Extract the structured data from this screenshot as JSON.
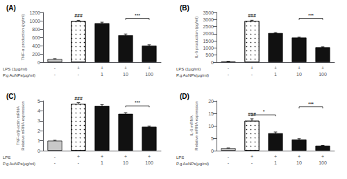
{
  "chart_data": [
    {
      "type": "bar",
      "title": "(A)",
      "ylabel": "TNF-α production (pg/ml)",
      "xlabel": "LPS (1μg/ml)\nP.g AuNPs(μg/ml)",
      "categories": [
        "-\n-",
        "+\n-",
        "+\n1",
        "+\n10",
        "+\n100"
      ],
      "values": [
        75,
        990,
        940,
        650,
        400
      ],
      "errors": [
        10,
        20,
        25,
        30,
        20
      ],
      "colors": [
        "#c8c8c8",
        "hatched_black",
        "#111111",
        "#111111",
        "#111111"
      ],
      "ylim": [
        0,
        1200
      ],
      "yticks": [
        0,
        200,
        400,
        600,
        800,
        1000,
        1200
      ],
      "grid": false,
      "annotations": [
        {
          "text": "###",
          "at": 1
        },
        {
          "text": "***",
          "from": 3,
          "to": 4,
          "y": 1056
        }
      ]
    },
    {
      "type": "bar",
      "title": "(B)",
      "ylabel": "IL-6 production (pg/ml)",
      "xlabel": "LPS (1μg/ml)\nP.g AuNPs(μg/ml)",
      "categories": [
        "-\n-",
        "+\n-",
        "+\n1",
        "+\n10",
        "+\n100"
      ],
      "values": [
        50,
        2900,
        2050,
        1730,
        1050
      ],
      "errors": [
        8,
        50,
        40,
        40,
        30
      ],
      "colors": [
        "#c8c8c8",
        "hatched_black",
        "#111111",
        "#111111",
        "#111111"
      ],
      "ylim": [
        0,
        3500
      ],
      "yticks": [
        0,
        500,
        1000,
        1500,
        2000,
        2500,
        3000,
        3500
      ],
      "grid": false,
      "annotations": [
        {
          "text": "###",
          "at": 1
        },
        {
          "text": "***",
          "from": 3,
          "to": 4,
          "y": 3080
        }
      ]
    },
    {
      "type": "bar",
      "title": "(C)",
      "ylabel": "TNF-α/β-actin mRNA\nRelative mRNA expression",
      "xlabel": "LPS\nP.g AuNPs(μg/ml)",
      "categories": [
        "-\n-",
        "+\n-",
        "+\n1",
        "+\n10",
        "+\n100"
      ],
      "values": [
        1.0,
        4.7,
        4.5,
        3.7,
        2.4
      ],
      "errors": [
        0.05,
        0.12,
        0.12,
        0.12,
        0.08
      ],
      "colors": [
        "#c8c8c8",
        "hatched_black",
        "#111111",
        "#111111",
        "#111111"
      ],
      "ylim": [
        0,
        5
      ],
      "yticks": [
        0,
        1,
        2,
        3,
        4,
        5
      ],
      "grid": false,
      "annotations": [
        {
          "text": "###",
          "at": 1
        },
        {
          "text": "***",
          "from": 3,
          "to": 4,
          "y": 4.5
        }
      ]
    },
    {
      "type": "bar",
      "title": "(D)",
      "ylabel": "IL-6 mRNA\nRelative mRNA expression",
      "xlabel": "LPS\nP.g AuNPs(μg/ml)",
      "categories": [
        "-\n-",
        "+\n-",
        "+\n1",
        "+\n10",
        "+\n100"
      ],
      "values": [
        1.0,
        12.0,
        7.0,
        4.5,
        2.0
      ],
      "errors": [
        0.1,
        0.8,
        0.5,
        0.3,
        0.1
      ],
      "colors": [
        "#c8c8c8",
        "hatched_black",
        "#111111",
        "#111111",
        "#111111"
      ],
      "ylim": [
        0,
        20
      ],
      "yticks": [
        0,
        5,
        10,
        15,
        20
      ],
      "grid": false,
      "annotations": [
        {
          "text": "###",
          "at": 1
        },
        {
          "text": "***",
          "from": 3,
          "to": 4,
          "y": 17.6
        },
        {
          "text": "*",
          "from": 1,
          "to": 2,
          "y": 14.4
        }
      ]
    }
  ]
}
